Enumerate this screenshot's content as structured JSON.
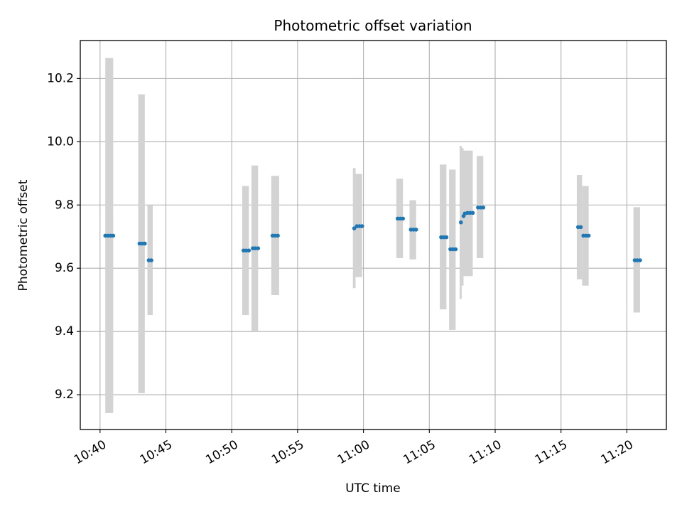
{
  "chart_data": {
    "type": "scatter",
    "title": "Photometric offset variation",
    "xlabel": "UTC time",
    "ylabel": "Photometric offset",
    "xlim": [
      "10:38.5",
      "11:23"
    ],
    "ylim": [
      9.09,
      10.32
    ],
    "xticks": [
      "10:40",
      "10:45",
      "10:50",
      "10:55",
      "11:00",
      "11:05",
      "11:10",
      "11:15",
      "11:20"
    ],
    "yticks": [
      "9.2",
      "9.4",
      "9.6",
      "9.8",
      "10.0",
      "10.2"
    ],
    "grid": true,
    "colors": {
      "points": "#1f77b4",
      "error_bands": "#d3d3d3"
    },
    "points": [
      {
        "time": "10:40.4",
        "offset": 9.703
      },
      {
        "time": "10:40.6",
        "offset": 9.703
      },
      {
        "time": "10:40.8",
        "offset": 9.703
      },
      {
        "time": "10:41.0",
        "offset": 9.703
      },
      {
        "time": "10:43.0",
        "offset": 9.678
      },
      {
        "time": "10:43.2",
        "offset": 9.678
      },
      {
        "time": "10:43.4",
        "offset": 9.678
      },
      {
        "time": "10:43.7",
        "offset": 9.625
      },
      {
        "time": "10:43.9",
        "offset": 9.625
      },
      {
        "time": "10:50.9",
        "offset": 9.656
      },
      {
        "time": "10:51.1",
        "offset": 9.656
      },
      {
        "time": "10:51.3",
        "offset": 9.656
      },
      {
        "time": "10:51.6",
        "offset": 9.663
      },
      {
        "time": "10:51.8",
        "offset": 9.663
      },
      {
        "time": "10:52.0",
        "offset": 9.663
      },
      {
        "time": "10:53.1",
        "offset": 9.703
      },
      {
        "time": "10:53.3",
        "offset": 9.703
      },
      {
        "time": "10:53.5",
        "offset": 9.703
      },
      {
        "time": "10:59.3",
        "offset": 9.726
      },
      {
        "time": "10:59.5",
        "offset": 9.733
      },
      {
        "time": "10:59.7",
        "offset": 9.733
      },
      {
        "time": "10:59.9",
        "offset": 9.733
      },
      {
        "time": "11:02.6",
        "offset": 9.757
      },
      {
        "time": "11:02.8",
        "offset": 9.757
      },
      {
        "time": "11:03.0",
        "offset": 9.757
      },
      {
        "time": "11:03.6",
        "offset": 9.722
      },
      {
        "time": "11:03.8",
        "offset": 9.722
      },
      {
        "time": "11:04.0",
        "offset": 9.722
      },
      {
        "time": "11:05.9",
        "offset": 9.698
      },
      {
        "time": "11:06.1",
        "offset": 9.698
      },
      {
        "time": "11:06.3",
        "offset": 9.698
      },
      {
        "time": "11:06.6",
        "offset": 9.66
      },
      {
        "time": "11:06.8",
        "offset": 9.66
      },
      {
        "time": "11:07.0",
        "offset": 9.66
      },
      {
        "time": "11:07.4",
        "offset": 9.745
      },
      {
        "time": "11:07.6",
        "offset": 9.765
      },
      {
        "time": "11:07.7",
        "offset": 9.773
      },
      {
        "time": "11:07.9",
        "offset": 9.775
      },
      {
        "time": "11:08.1",
        "offset": 9.775
      },
      {
        "time": "11:08.3",
        "offset": 9.775
      },
      {
        "time": "11:08.7",
        "offset": 9.792
      },
      {
        "time": "11:08.9",
        "offset": 9.792
      },
      {
        "time": "11:09.1",
        "offset": 9.792
      },
      {
        "time": "11:16.3",
        "offset": 9.73
      },
      {
        "time": "11:16.5",
        "offset": 9.73
      },
      {
        "time": "11:16.7",
        "offset": 9.703
      },
      {
        "time": "11:16.9",
        "offset": 9.703
      },
      {
        "time": "11:17.1",
        "offset": 9.703
      },
      {
        "time": "11:20.6",
        "offset": 9.625
      },
      {
        "time": "11:20.8",
        "offset": 9.625
      },
      {
        "time": "11:21.0",
        "offset": 9.625
      }
    ],
    "error_bands": [
      {
        "start": "10:40.4",
        "end": "10:41.0",
        "low": 9.142,
        "high": 10.265
      },
      {
        "start": "10:42.9",
        "end": "10:43.4",
        "low": 9.205,
        "high": 10.15
      },
      {
        "start": "10:43.6",
        "end": "10:44.0",
        "low": 9.452,
        "high": 9.8
      },
      {
        "start": "10:50.8",
        "end": "10:51.3",
        "low": 9.452,
        "high": 9.86
      },
      {
        "start": "10:51.5",
        "end": "10:52.0",
        "low": 9.4,
        "high": 9.925
      },
      {
        "start": "10:53.0",
        "end": "10:53.6",
        "low": 9.515,
        "high": 9.892
      },
      {
        "start": "10:59.2",
        "end": "10:59.4",
        "low": 9.537,
        "high": 9.917
      },
      {
        "start": "10:59.4",
        "end": "10:59.9",
        "low": 9.572,
        "high": 9.898
      },
      {
        "start": "11:02.5",
        "end": "11:03.0",
        "low": 9.632,
        "high": 9.883
      },
      {
        "start": "11:03.5",
        "end": "11:04.0",
        "low": 9.628,
        "high": 9.815
      },
      {
        "start": "11:05.8",
        "end": "11:06.3",
        "low": 9.47,
        "high": 9.928
      },
      {
        "start": "11:06.5",
        "end": "11:07.0",
        "low": 9.405,
        "high": 9.912
      },
      {
        "start": "11:07.3",
        "end": "11:07.4",
        "low": 9.503,
        "high": 9.987
      },
      {
        "start": "11:07.4",
        "end": "11:07.6",
        "low": 9.545,
        "high": 9.98
      },
      {
        "start": "11:07.6",
        "end": "11:08.3",
        "low": 9.575,
        "high": 9.972
      },
      {
        "start": "11:08.6",
        "end": "11:09.1",
        "low": 9.632,
        "high": 9.955
      },
      {
        "start": "11:16.2",
        "end": "11:16.6",
        "low": 9.565,
        "high": 9.895
      },
      {
        "start": "11:16.6",
        "end": "11:17.1",
        "low": 9.545,
        "high": 9.86
      },
      {
        "start": "11:20.5",
        "end": "11:21.0",
        "low": 9.46,
        "high": 9.793
      }
    ]
  }
}
